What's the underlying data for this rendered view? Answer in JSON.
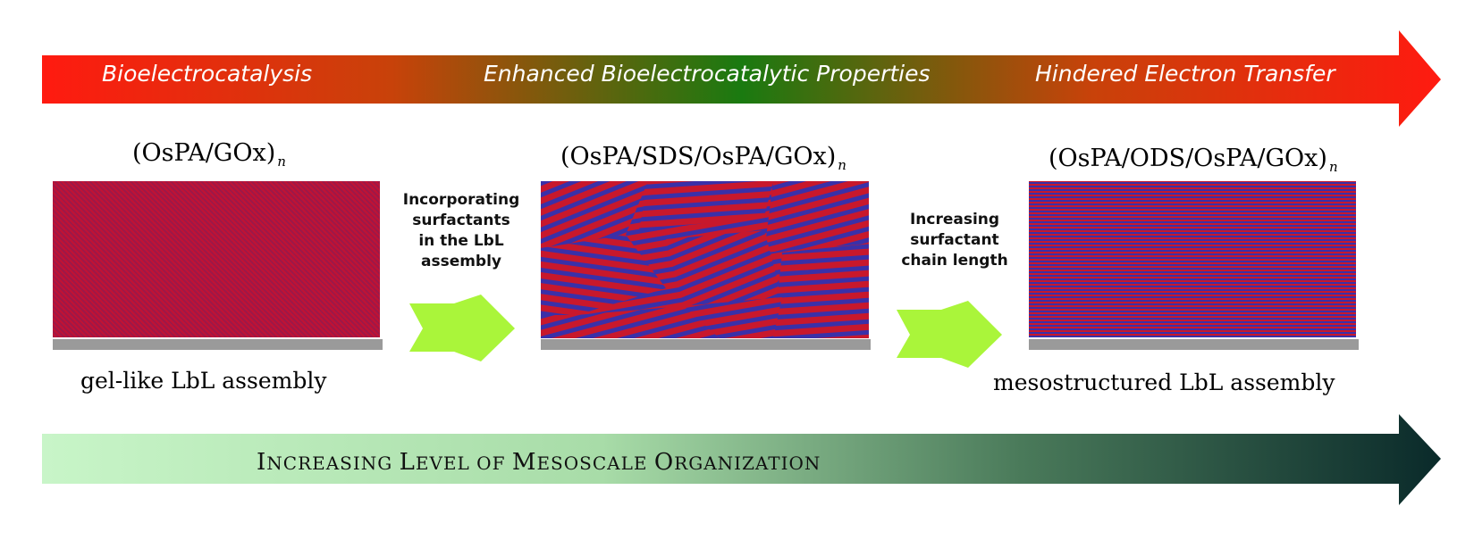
{
  "top_arrow": {
    "labels": [
      "Bioelectrocatalysis",
      "Enhanced Bioelectrocatalytic Properties",
      "Hindered Electron Transfer"
    ],
    "colors": {
      "start": "#ff1a10",
      "mid": "#1a7a10",
      "end": "#ff1a10"
    }
  },
  "bottom_arrow": {
    "label_first": "I",
    "label_rest_1": "ncreasing ",
    "label_L": "L",
    "label_rest_2": "evel of ",
    "label_M": "M",
    "label_rest_3": "esoscale ",
    "label_O": "O",
    "label_rest_4": "rganization",
    "colors": {
      "start": "#c8f5c8",
      "end": "#0a2a2a"
    }
  },
  "panels": [
    {
      "formula": "(OsPA/GOx)",
      "subscript": "n",
      "caption": "gel-like LbL assembly"
    },
    {
      "formula": "(OsPA/SDS/OsPA/GOx)",
      "subscript": "n",
      "caption": ""
    },
    {
      "formula": "(OsPA/ODS/OsPA/GOx)",
      "subscript": "n",
      "caption": "mesostructured LbL assembly"
    }
  ],
  "steps": [
    {
      "lines": [
        "Incorporating",
        "surfactants",
        "in the LbL",
        "assembly"
      ]
    },
    {
      "lines": [
        "Increasing",
        "surfactant",
        "chain length"
      ]
    }
  ],
  "colors": {
    "stripe_red": "#c8182c",
    "stripe_blue": "#3a30a8",
    "substrate": "#9a9a9a",
    "step_arrow": "#aaf53a"
  }
}
